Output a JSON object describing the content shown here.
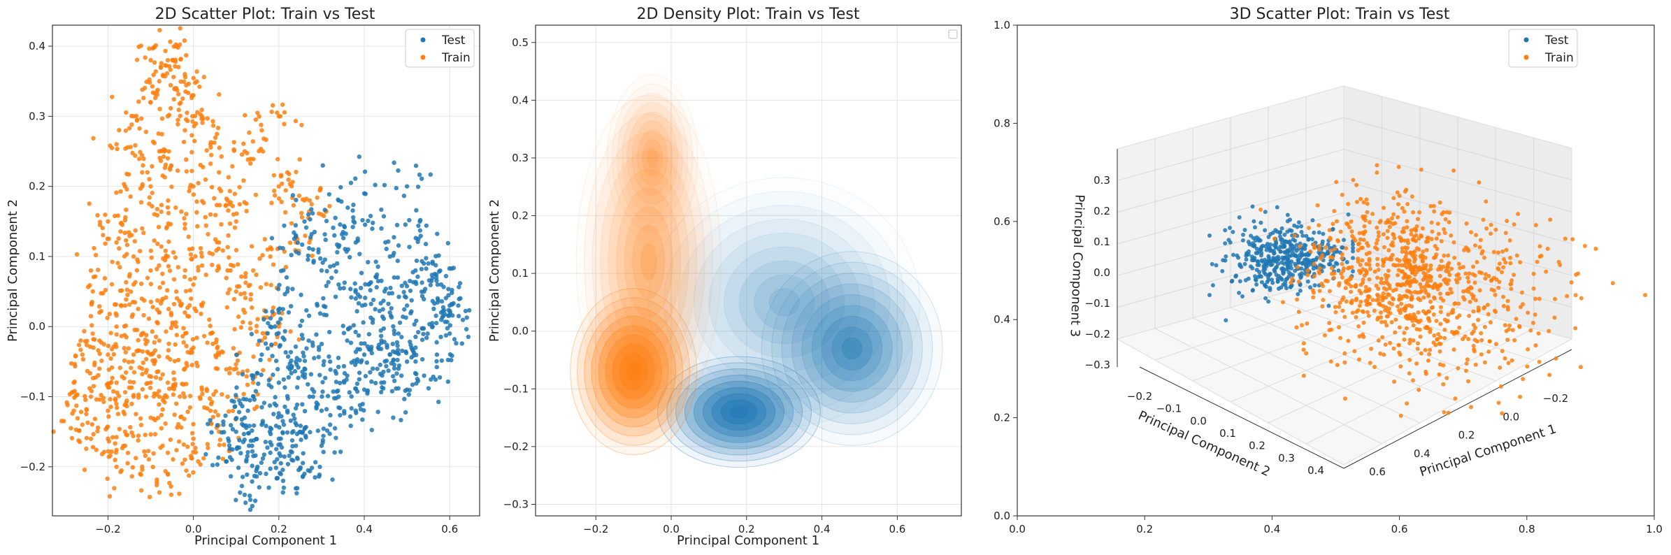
{
  "colors": {
    "test": "#1f77b4",
    "train": "#ff7f0e",
    "grid": "#e5e5e5",
    "axis": "#333333"
  },
  "chart_data": [
    {
      "type": "scatter",
      "title": "2D Scatter Plot: Train vs Test",
      "xlabel": "Principal Component 1",
      "ylabel": "Principal Component 2",
      "xlim": [
        -0.33,
        0.67
      ],
      "ylim": [
        -0.27,
        0.43
      ],
      "xticks": [
        {
          "v": -0.2,
          "label": "−0.2"
        },
        {
          "v": 0.0,
          "label": "0.0"
        },
        {
          "v": 0.2,
          "label": "0.2"
        },
        {
          "v": 0.4,
          "label": "0.4"
        },
        {
          "v": 0.6,
          "label": "0.6"
        }
      ],
      "yticks": [
        {
          "v": -0.2,
          "label": "−0.2"
        },
        {
          "v": -0.1,
          "label": "−0.1"
        },
        {
          "v": 0.0,
          "label": "0.0"
        },
        {
          "v": 0.1,
          "label": "0.1"
        },
        {
          "v": 0.2,
          "label": "0.2"
        },
        {
          "v": 0.3,
          "label": "0.3"
        },
        {
          "v": 0.4,
          "label": "0.4"
        }
      ],
      "grid": true,
      "legend_position": "top-right",
      "series": [
        {
          "name": "Test",
          "color": "#1f77b4",
          "points": [
            [
              0.16,
              -0.14
            ],
            [
              0.2,
              -0.16
            ],
            [
              0.22,
              -0.12
            ],
            [
              0.18,
              -0.18
            ],
            [
              0.25,
              -0.15
            ],
            [
              0.12,
              -0.13
            ],
            [
              0.28,
              -0.1
            ],
            [
              0.15,
              -0.2
            ],
            [
              0.23,
              -0.19
            ],
            [
              0.3,
              -0.17
            ],
            [
              0.1,
              -0.15
            ],
            [
              0.2,
              -0.08
            ],
            [
              0.26,
              -0.06
            ],
            [
              0.32,
              -0.05
            ],
            [
              0.36,
              -0.02
            ],
            [
              0.4,
              -0.04
            ],
            [
              0.44,
              -0.02
            ],
            [
              0.48,
              -0.01
            ],
            [
              0.52,
              -0.03
            ],
            [
              0.46,
              0.02
            ],
            [
              0.5,
              0.03
            ],
            [
              0.42,
              0.01
            ],
            [
              0.38,
              0.04
            ],
            [
              0.54,
              0.05
            ],
            [
              0.56,
              0.0
            ],
            [
              0.48,
              -0.06
            ],
            [
              0.44,
              -0.08
            ],
            [
              0.4,
              -0.09
            ],
            [
              0.36,
              -0.07
            ],
            [
              0.5,
              -0.05
            ],
            [
              0.58,
              0.02
            ],
            [
              0.6,
              0.03
            ],
            [
              0.34,
              0.06
            ],
            [
              0.3,
              0.08
            ],
            [
              0.28,
              0.11
            ],
            [
              0.24,
              0.13
            ],
            [
              0.26,
              0.15
            ],
            [
              0.34,
              0.18
            ],
            [
              0.4,
              0.19
            ],
            [
              0.5,
              0.2
            ],
            [
              0.53,
              0.15
            ],
            [
              0.46,
              0.1
            ],
            [
              0.52,
              0.08
            ],
            [
              0.55,
              0.09
            ],
            [
              0.47,
              0.07
            ],
            [
              0.41,
              0.06
            ],
            [
              0.22,
              0.05
            ],
            [
              0.2,
              0.02
            ],
            [
              0.18,
              0.0
            ],
            [
              0.16,
              -0.04
            ],
            [
              0.14,
              -0.07
            ],
            [
              0.12,
              -0.24
            ],
            [
              0.17,
              -0.21
            ],
            [
              0.21,
              -0.22
            ],
            [
              0.26,
              -0.21
            ],
            [
              0.32,
              -0.14
            ],
            [
              0.3,
              -0.12
            ],
            [
              0.34,
              -0.1
            ],
            [
              0.38,
              -0.12
            ],
            [
              0.42,
              -0.06
            ],
            [
              0.46,
              -0.04
            ],
            [
              0.5,
              -0.09
            ],
            [
              0.54,
              -0.07
            ],
            [
              0.57,
              -0.04
            ],
            [
              0.6,
              -0.01
            ],
            [
              0.62,
              0.03
            ],
            [
              0.58,
              0.06
            ],
            [
              0.56,
              0.09
            ],
            [
              0.44,
              0.14
            ],
            [
              0.38,
              0.12
            ],
            [
              0.33,
              0.13
            ],
            [
              0.29,
              0.03
            ],
            [
              0.27,
              -0.02
            ],
            [
              0.24,
              -0.05
            ],
            [
              0.19,
              -0.11
            ],
            [
              0.13,
              -0.17
            ],
            [
              0.09,
              -0.19
            ],
            [
              0.07,
              -0.14
            ],
            [
              0.11,
              -0.11
            ],
            [
              0.24,
              -0.17
            ]
          ]
        },
        {
          "name": "Train",
          "color": "#ff7f0e",
          "points": [
            [
              -0.1,
              -0.04
            ],
            [
              -0.08,
              -0.02
            ],
            [
              -0.12,
              -0.06
            ],
            [
              -0.06,
              -0.08
            ],
            [
              -0.14,
              -0.1
            ],
            [
              -0.18,
              -0.08
            ],
            [
              -0.2,
              -0.12
            ],
            [
              -0.22,
              -0.06
            ],
            [
              -0.24,
              -0.1
            ],
            [
              -0.26,
              -0.14
            ],
            [
              -0.28,
              -0.12
            ],
            [
              -0.16,
              -0.15
            ],
            [
              -0.1,
              -0.13
            ],
            [
              -0.04,
              -0.11
            ],
            [
              -0.02,
              -0.06
            ],
            [
              0.0,
              -0.03
            ],
            [
              0.02,
              -0.09
            ],
            [
              0.04,
              -0.12
            ],
            [
              -0.06,
              -0.18
            ],
            [
              -0.12,
              -0.2
            ],
            [
              -0.16,
              -0.17
            ],
            [
              -0.2,
              -0.16
            ],
            [
              -0.08,
              0.02
            ],
            [
              -0.04,
              0.05
            ],
            [
              -0.1,
              0.08
            ],
            [
              -0.14,
              0.1
            ],
            [
              -0.18,
              0.12
            ],
            [
              -0.2,
              0.15
            ],
            [
              -0.16,
              0.2
            ],
            [
              -0.12,
              0.22
            ],
            [
              -0.08,
              0.25
            ],
            [
              -0.06,
              0.3
            ],
            [
              -0.1,
              0.32
            ],
            [
              -0.08,
              0.35
            ],
            [
              -0.06,
              0.38
            ],
            [
              -0.04,
              0.4
            ],
            [
              -0.02,
              0.36
            ],
            [
              0.0,
              0.33
            ],
            [
              0.02,
              0.3
            ],
            [
              -0.02,
              0.28
            ],
            [
              0.04,
              0.26
            ],
            [
              0.06,
              0.22
            ],
            [
              0.08,
              0.18
            ],
            [
              0.1,
              0.15
            ],
            [
              0.06,
              0.12
            ],
            [
              0.02,
              0.1
            ],
            [
              -0.02,
              0.14
            ],
            [
              -0.06,
              0.17
            ],
            [
              -0.1,
              0.2
            ],
            [
              -0.14,
              0.06
            ],
            [
              -0.22,
              0.02
            ],
            [
              -0.24,
              0.08
            ],
            [
              -0.18,
              0.0
            ],
            [
              -0.12,
              -0.01
            ],
            [
              0.1,
              0.05
            ],
            [
              0.14,
              0.08
            ],
            [
              0.18,
              0.1
            ],
            [
              0.12,
              0.02
            ],
            [
              0.16,
              -0.02
            ],
            [
              0.2,
              0.0
            ],
            [
              0.1,
              -0.06
            ],
            [
              0.06,
              -0.04
            ],
            [
              0.12,
              0.25
            ],
            [
              0.16,
              0.28
            ],
            [
              0.2,
              0.3
            ],
            [
              0.22,
              0.22
            ],
            [
              0.26,
              0.18
            ],
            [
              0.3,
              0.16
            ],
            [
              0.24,
              0.12
            ],
            [
              0.2,
              0.2
            ],
            [
              -0.06,
              -0.21
            ],
            [
              0.0,
              -0.16
            ],
            [
              0.06,
              -0.15
            ],
            [
              -0.02,
              -0.19
            ],
            [
              -0.26,
              -0.04
            ],
            [
              -0.28,
              -0.08
            ],
            [
              -0.22,
              -0.02
            ],
            [
              -0.16,
              0.03
            ],
            [
              -0.04,
              0.0
            ],
            [
              0.0,
              0.06
            ],
            [
              -0.08,
              -0.1
            ],
            [
              -0.14,
              -0.04
            ],
            [
              -0.12,
              0.14
            ],
            [
              -0.18,
              0.26
            ],
            [
              -0.14,
              0.3
            ],
            [
              -0.1,
              0.38
            ],
            [
              -0.04,
              0.34
            ],
            [
              0.0,
              0.2
            ],
            [
              0.04,
              0.16
            ],
            [
              0.08,
              0.08
            ],
            [
              -0.06,
              0.1
            ],
            [
              -0.1,
              -0.08
            ],
            [
              -0.2,
              -0.04
            ],
            [
              -0.24,
              -0.16
            ],
            [
              -0.18,
              -0.2
            ],
            [
              0.08,
              -0.1
            ],
            [
              0.14,
              -0.08
            ],
            [
              0.04,
              -0.01
            ],
            [
              -0.02,
              0.02
            ],
            [
              -0.06,
              0.24
            ]
          ]
        }
      ]
    },
    {
      "type": "density",
      "title": "2D Density Plot: Train vs Test",
      "xlabel": "Principal Component 1",
      "ylabel": "Principal Component 2",
      "xlim": [
        -0.36,
        0.77
      ],
      "ylim": [
        -0.32,
        0.53
      ],
      "xticks": [
        {
          "v": -0.2,
          "label": "−0.2"
        },
        {
          "v": 0.0,
          "label": "0.0"
        },
        {
          "v": 0.2,
          "label": "0.2"
        },
        {
          "v": 0.4,
          "label": "0.4"
        },
        {
          "v": 0.6,
          "label": "0.6"
        }
      ],
      "yticks": [
        {
          "v": -0.3,
          "label": "−0.3"
        },
        {
          "v": -0.2,
          "label": "−0.2"
        },
        {
          "v": -0.1,
          "label": "−0.1"
        },
        {
          "v": 0.0,
          "label": "0.0"
        },
        {
          "v": 0.1,
          "label": "0.1"
        },
        {
          "v": 0.2,
          "label": "0.2"
        },
        {
          "v": 0.3,
          "label": "0.3"
        },
        {
          "v": 0.4,
          "label": "0.4"
        },
        {
          "v": 0.5,
          "label": "0.5"
        }
      ],
      "grid": true,
      "legend_position": "top-right",
      "series": [
        {
          "color": "#1f77b4",
          "peaks": [
            {
              "x": 0.18,
              "y": -0.14,
              "sx": 0.09,
              "sy": 0.04,
              "w": 1.0
            },
            {
              "x": 0.48,
              "y": -0.03,
              "sx": 0.1,
              "sy": 0.07,
              "w": 0.55
            },
            {
              "x": 0.3,
              "y": 0.05,
              "sx": 0.15,
              "sy": 0.09,
              "w": 0.25
            }
          ]
        },
        {
          "color": "#ff7f0e",
          "peaks": [
            {
              "x": -0.1,
              "y": -0.07,
              "sx": 0.07,
              "sy": 0.06,
              "w": 1.0
            },
            {
              "x": -0.05,
              "y": 0.3,
              "sx": 0.05,
              "sy": 0.06,
              "w": 0.3
            },
            {
              "x": -0.06,
              "y": 0.12,
              "sx": 0.08,
              "sy": 0.12,
              "w": 0.35
            }
          ]
        }
      ]
    },
    {
      "type": "scatter3d",
      "title": "3D Scatter Plot: Train vs Test",
      "xlabel": "Principal Component 1",
      "ylabel": "Principal Component 2",
      "zlabel": "Principal Component 3",
      "outer_xticks": [
        "0.0",
        "0.2",
        "0.4",
        "0.6",
        "0.8",
        "1.0"
      ],
      "outer_yticks": [
        "0.0",
        "0.2",
        "0.4",
        "0.6",
        "0.8",
        "1.0"
      ],
      "x_tick_labels": [
        "0.6",
        "0.4",
        "0.2",
        "0.0",
        "−0.2"
      ],
      "y_tick_labels": [
        "−0.2",
        "−0.1",
        "0.0",
        "0.1",
        "0.2",
        "0.3",
        "0.4"
      ],
      "z_tick_labels": [
        "−0.3",
        "−0.2",
        "−0.1",
        "0.0",
        "0.1",
        "0.2",
        "0.3"
      ],
      "legend_position": "top-right",
      "series": [
        {
          "name": "Test",
          "color": "#1f77b4",
          "cluster": {
            "x": -0.1,
            "y": -0.05,
            "z": 0.05,
            "spread": [
              0.08,
              0.07,
              0.06
            ]
          }
        },
        {
          "name": "Train",
          "color": "#ff7f0e",
          "cluster": {
            "x": 0.2,
            "y": 0.2,
            "z": 0.05,
            "spread": [
              0.15,
              0.12,
              0.1
            ]
          }
        }
      ]
    }
  ]
}
